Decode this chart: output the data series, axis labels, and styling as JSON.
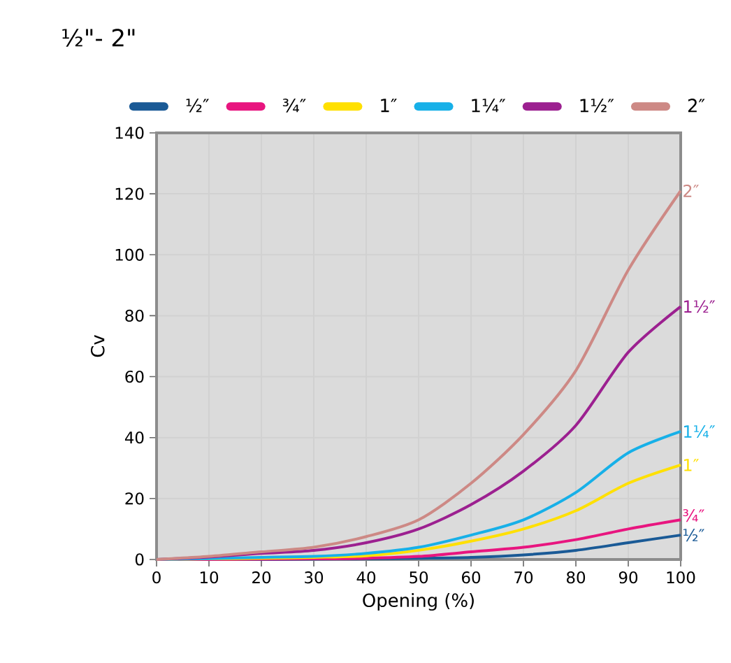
{
  "chart_data": {
    "type": "line",
    "title": "½\"- 2\"",
    "xlabel": "Opening (%)",
    "ylabel": "Cv",
    "x": [
      0,
      10,
      20,
      30,
      40,
      50,
      60,
      70,
      80,
      90,
      100
    ],
    "series": [
      {
        "name": "½″",
        "color": "#1a5a96",
        "values": [
          0,
          0,
          0,
          0.1,
          0.2,
          0.4,
          0.7,
          1.5,
          3,
          5.5,
          8
        ]
      },
      {
        "name": "¾″",
        "color": "#e8157f",
        "values": [
          0,
          0,
          0.1,
          0.2,
          0.4,
          1,
          2.5,
          4,
          6.5,
          10,
          13
        ]
      },
      {
        "name": "1″",
        "color": "#ffe000",
        "values": [
          0,
          0.2,
          0.4,
          0.7,
          1.2,
          3,
          6,
          10,
          16,
          25,
          31
        ]
      },
      {
        "name": "1¼″",
        "color": "#17b0e8",
        "values": [
          0,
          0.3,
          0.7,
          1,
          2,
          4,
          8,
          13,
          22,
          35,
          42
        ]
      },
      {
        "name": "1½″",
        "color": "#9c2090",
        "values": [
          0,
          0.8,
          2,
          3,
          5.5,
          10,
          18,
          29,
          44,
          68,
          83
        ]
      },
      {
        "name": "2″",
        "color": "#cd8985",
        "values": [
          0,
          1,
          2.5,
          4,
          7.5,
          13,
          25,
          41,
          62,
          95,
          121
        ]
      }
    ],
    "xlim": [
      0,
      100
    ],
    "ylim": [
      0,
      140
    ],
    "xticks": [
      0,
      10,
      20,
      30,
      40,
      50,
      60,
      70,
      80,
      90,
      100
    ],
    "yticks": [
      0,
      20,
      40,
      60,
      80,
      100,
      120,
      140
    ],
    "grid": true,
    "legend": "top"
  }
}
